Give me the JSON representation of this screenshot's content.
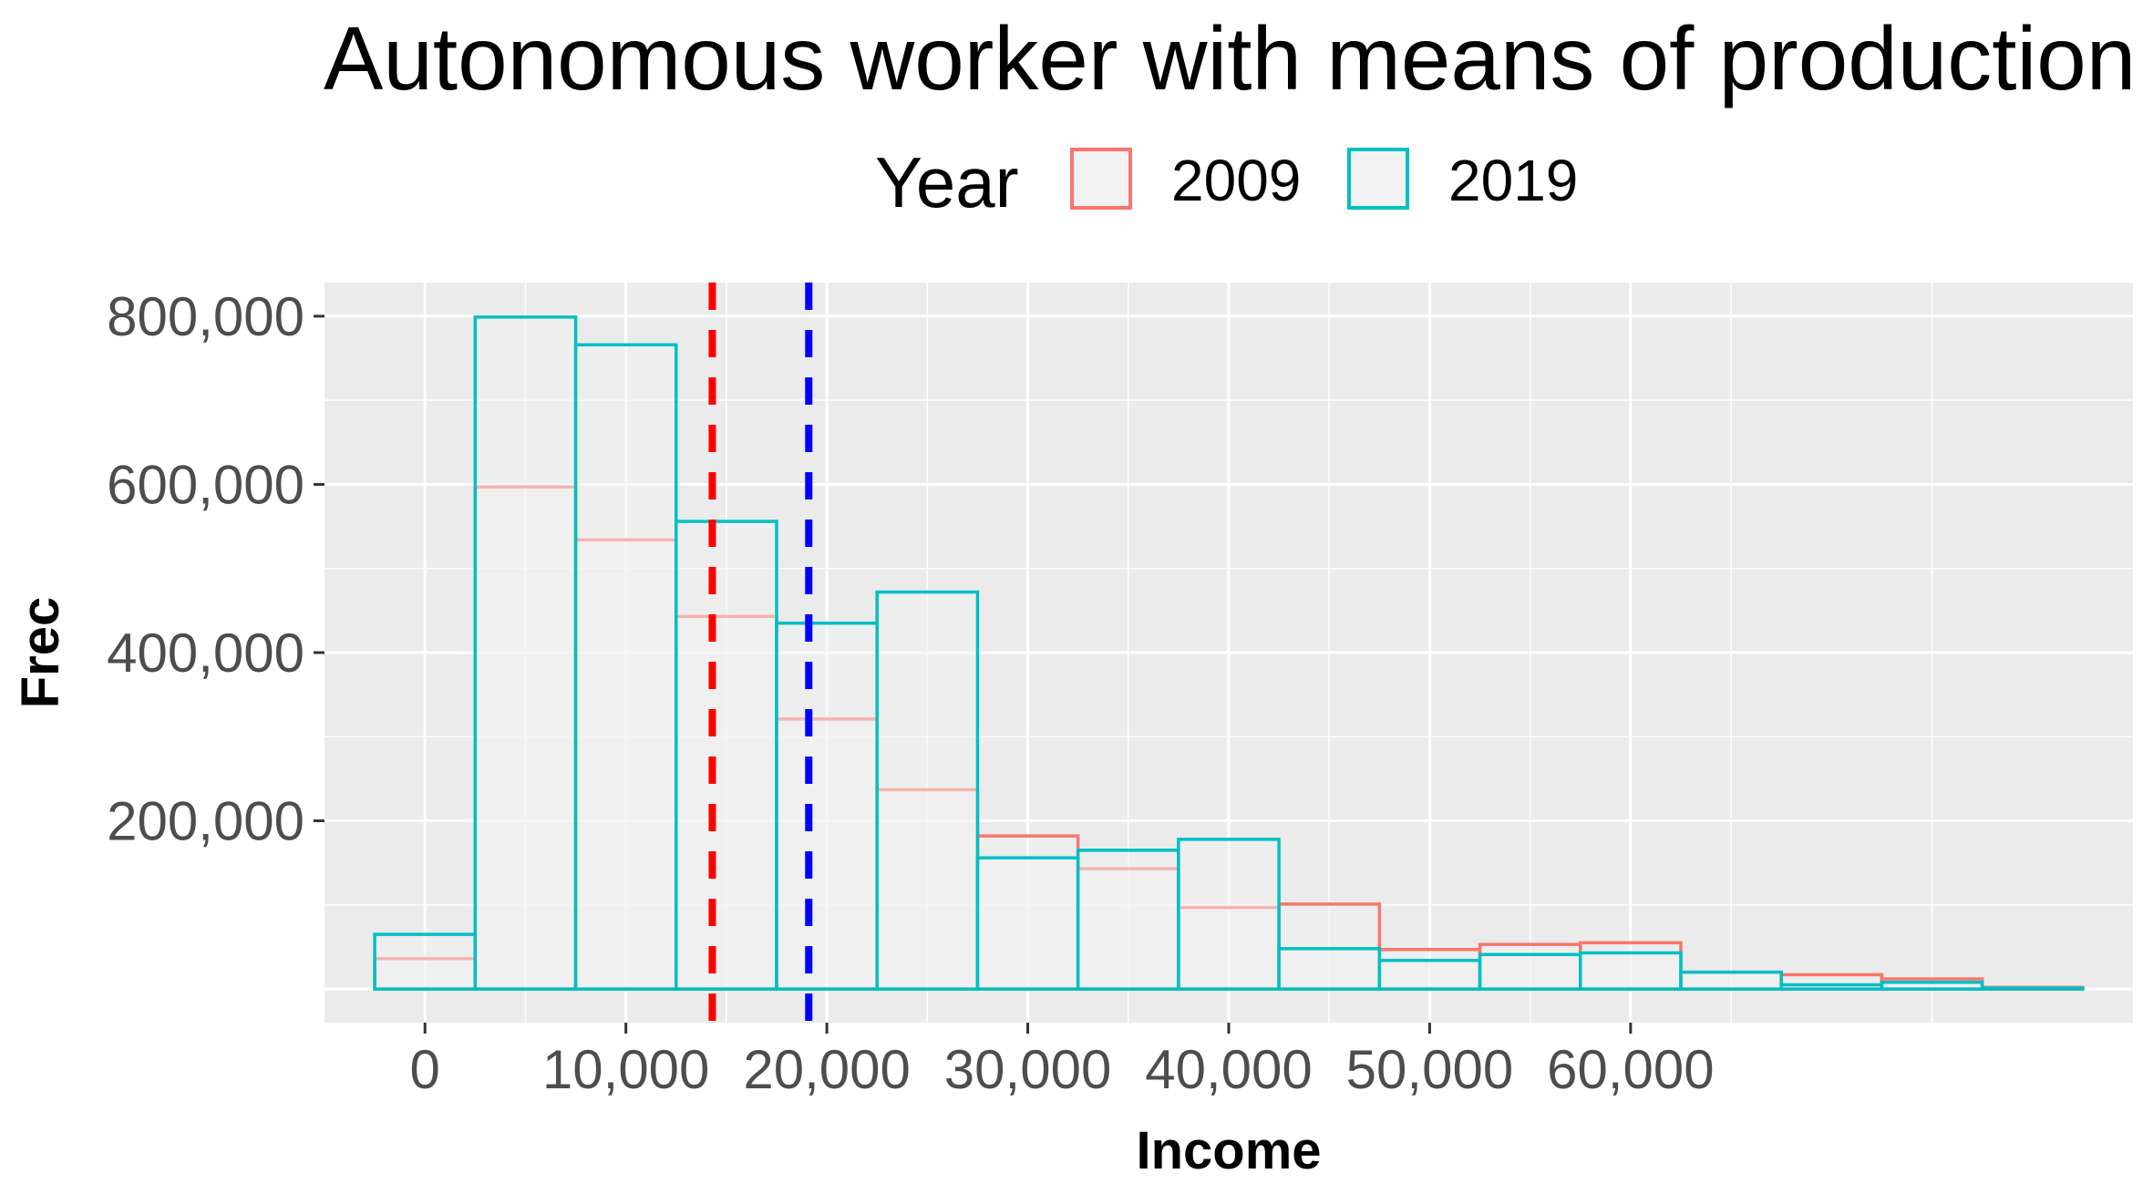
{
  "chart_data": {
    "type": "histogram",
    "title": "Autonomous worker with means of production",
    "xlabel": "Income",
    "ylabel": "Frec",
    "legend": {
      "title": "Year",
      "placement": "top",
      "entries": [
        {
          "label": "2009",
          "color": "#F8766D"
        },
        {
          "label": "2019",
          "color": "#00BFC4"
        }
      ]
    },
    "bin_width": 5000,
    "bin_centers": [
      0,
      5000,
      10000,
      15000,
      20000,
      25000,
      30000,
      35000,
      40000,
      45000,
      50000,
      55000,
      60000,
      65000,
      70000,
      75000,
      80000
    ],
    "series": [
      {
        "name": "2009",
        "color": "#F8766D",
        "values": [
          36000,
          597000,
          534000,
          443000,
          321000,
          237000,
          182000,
          143000,
          97000,
          101000,
          47000,
          53000,
          55000,
          20000,
          17000,
          12000,
          2000
        ]
      },
      {
        "name": "2019",
        "color": "#00BFC4",
        "values": [
          65000,
          799000,
          766000,
          556000,
          435000,
          472000,
          156000,
          165000,
          178000,
          48000,
          34000,
          41000,
          43000,
          20000,
          5000,
          8000,
          1000
        ]
      }
    ],
    "vlines": [
      {
        "x": 14300,
        "color": "#FF0000",
        "style": "dashed"
      },
      {
        "x": 19100,
        "color": "#0000FF",
        "style": "dashed"
      }
    ],
    "xticks": [
      0,
      10000,
      20000,
      30000,
      40000,
      50000,
      60000
    ],
    "xtick_labels": [
      "0",
      "10,000",
      "20,000",
      "30,000",
      "40,000",
      "50,000",
      "60,000"
    ],
    "yticks": [
      200000,
      400000,
      600000,
      800000
    ],
    "ytick_labels": [
      "200,000",
      "400,000",
      "600,000",
      "800,000"
    ],
    "xlim": [
      -5000,
      85000
    ],
    "ylim": [
      -40000,
      840000
    ],
    "panel_background": "#EBEBEB",
    "grid": true
  }
}
